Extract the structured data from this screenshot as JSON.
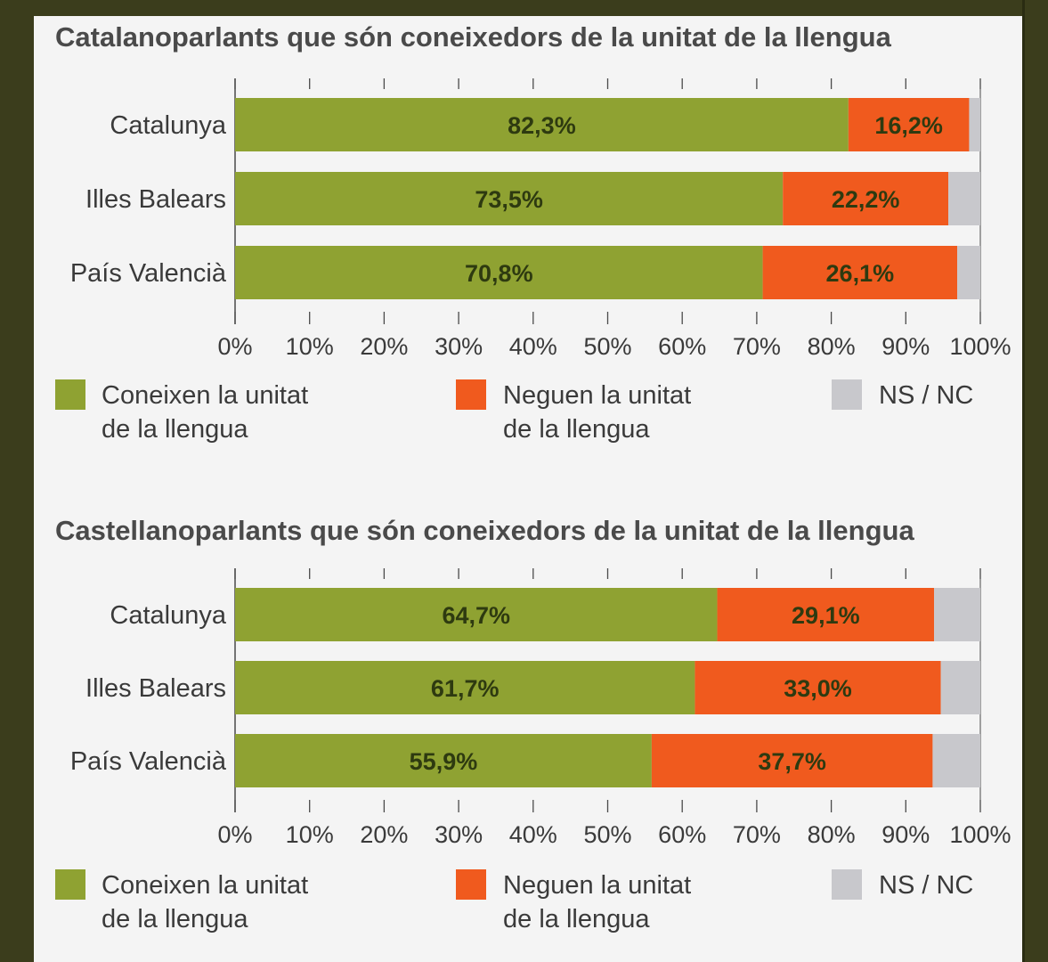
{
  "colors": {
    "know": "#8fa232",
    "deny": "#f05a1e",
    "nsnc": "#c8c8cc",
    "title": "#4a4a4a",
    "label": "#3a3a3a",
    "value_text": "#2e3a10",
    "axis": "#4a4a4a",
    "background": "#f4f4f4",
    "frame": "#3b3d1c"
  },
  "chart_data": [
    {
      "type": "bar",
      "orientation": "horizontal",
      "stacked": true,
      "title": "Catalanoparlants que són coneixedors de la unitat de la llengua",
      "categories": [
        "Catalunya",
        "Illes Balears",
        "País Valencià"
      ],
      "series": [
        {
          "name": "Coneixen la unitat de la llengua",
          "values": [
            82.3,
            73.5,
            70.8
          ],
          "labels": [
            "82,3%",
            "73,5%",
            "70,8%"
          ]
        },
        {
          "name": "Neguen la unitat de la llengua",
          "values": [
            16.2,
            22.2,
            26.1
          ],
          "labels": [
            "16,2%",
            "22,2%",
            "26,1%"
          ]
        },
        {
          "name": "NS / NC",
          "values": [
            1.5,
            4.3,
            3.1
          ]
        }
      ],
      "xlim": [
        0,
        100
      ],
      "xticks": [
        "0%",
        "10%",
        "20%",
        "30%",
        "40%",
        "50%",
        "60%",
        "70%",
        "80%",
        "90%",
        "100%"
      ],
      "grid": false,
      "legend": "bottom"
    },
    {
      "type": "bar",
      "orientation": "horizontal",
      "stacked": true,
      "title": "Castellanoparlants que són coneixedors de la unitat de la llengua",
      "categories": [
        "Catalunya",
        "Illes Balears",
        "País Valencià"
      ],
      "series": [
        {
          "name": "Coneixen la unitat de la llengua",
          "values": [
            64.7,
            61.7,
            55.9
          ],
          "labels": [
            "64,7%",
            "61,7%",
            "55,9%"
          ]
        },
        {
          "name": "Neguen la unitat de la llengua",
          "values": [
            29.1,
            33.0,
            37.7
          ],
          "labels": [
            "29,1%",
            "33,0%",
            "37,7%"
          ]
        },
        {
          "name": "NS / NC",
          "values": [
            6.2,
            5.3,
            6.4
          ]
        }
      ],
      "xlim": [
        0,
        100
      ],
      "xticks": [
        "0%",
        "10%",
        "20%",
        "30%",
        "40%",
        "50%",
        "60%",
        "70%",
        "80%",
        "90%",
        "100%"
      ],
      "grid": false,
      "legend": "bottom"
    }
  ],
  "legend": [
    {
      "lines": [
        "Coneixen la unitat",
        "de la llengua"
      ],
      "color_key": "know"
    },
    {
      "lines": [
        "Neguen la unitat",
        "de la llengua"
      ],
      "color_key": "deny"
    },
    {
      "lines": [
        "NS / NC"
      ],
      "color_key": "nsnc"
    }
  ]
}
